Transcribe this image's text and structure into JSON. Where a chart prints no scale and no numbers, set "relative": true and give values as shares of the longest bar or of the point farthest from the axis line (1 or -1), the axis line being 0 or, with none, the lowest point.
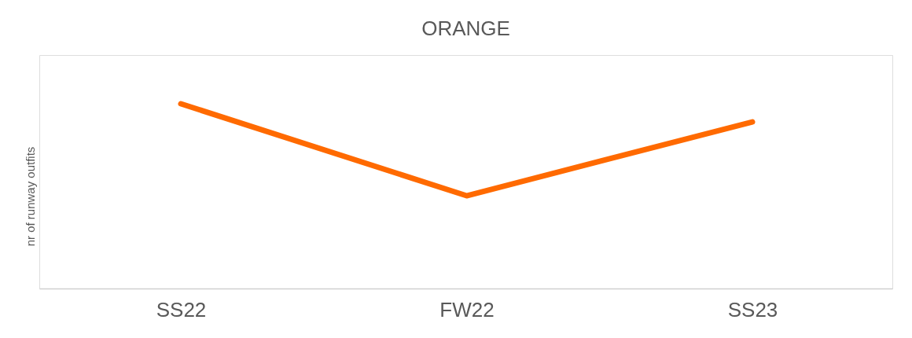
{
  "chart_data": {
    "type": "line",
    "title": "ORANGE",
    "ylabel": "nr of runway outfits",
    "categories": [
      "SS22",
      "FW22",
      "SS23"
    ],
    "relative": true,
    "series": [
      {
        "color": "#ff6a00",
        "values": [
          1,
          0.502,
          0.902
        ]
      }
    ],
    "grid": false,
    "marker": "none",
    "line_style": "solid"
  }
}
